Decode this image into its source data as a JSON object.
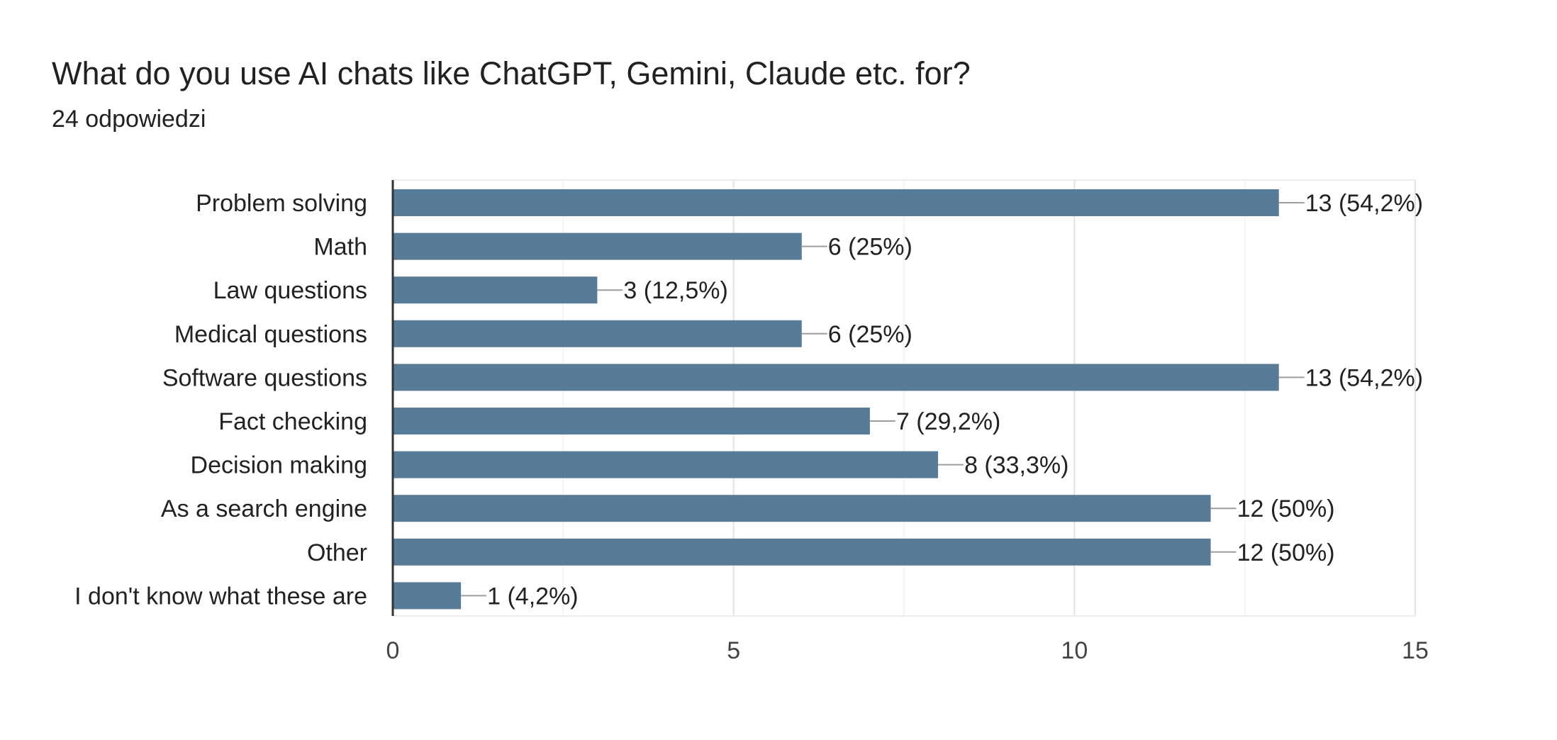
{
  "header": {
    "title": "What do you use AI chats like ChatGPT, Gemini, Claude etc. for?",
    "responses": "24 odpowiedzi"
  },
  "chart_data": {
    "type": "bar",
    "orientation": "horizontal",
    "categories": [
      "Problem solving",
      "Math",
      "Law questions",
      "Medical questions",
      "Software questions",
      "Fact checking",
      "Decision making",
      "As a search engine",
      "Other",
      "I don't know what these are"
    ],
    "values": [
      13,
      6,
      3,
      6,
      13,
      7,
      8,
      12,
      12,
      1
    ],
    "data_labels": [
      "13 (54,2%)",
      "6 (25%)",
      "3 (12,5%)",
      "6 (25%)",
      "13 (54,2%)",
      "7 (29,2%)",
      "8 (33,3%)",
      "12 (50%)",
      "12 (50%)",
      "1 (4,2%)"
    ],
    "xlim": [
      0,
      15
    ],
    "xticks": [
      0,
      5,
      10,
      15
    ],
    "grid": true,
    "bar_color": "#587c97"
  }
}
